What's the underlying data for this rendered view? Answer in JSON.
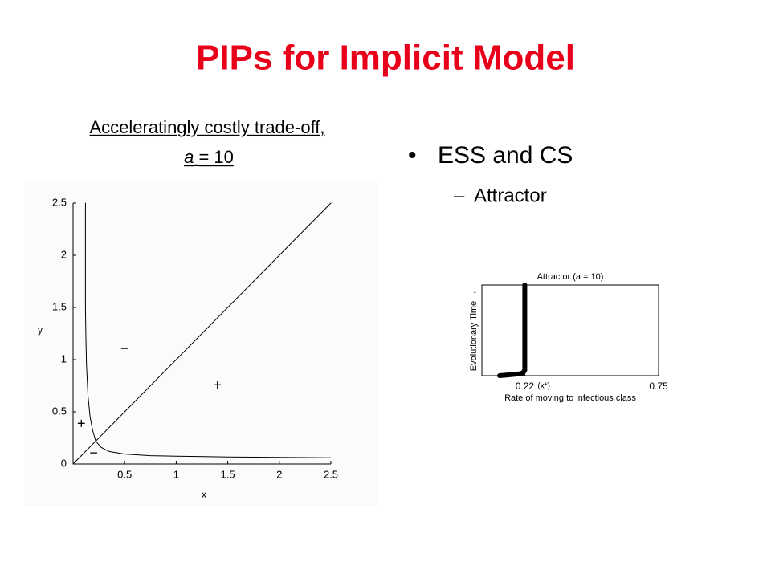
{
  "header": {
    "title": "PIPs for Implicit Model"
  },
  "caption": {
    "line1": "Acceleratingly costly trade-off,",
    "variable": "a",
    "rest": "= 10"
  },
  "bullets": [
    {
      "text": "ESS and CS",
      "sub": [
        "Attractor"
      ]
    }
  ],
  "chart_data": [
    {
      "type": "line",
      "xlabel": "x",
      "ylabel": "y",
      "xlim": [
        0,
        2.5
      ],
      "ylim": [
        0,
        2.5
      ],
      "xticks": [
        0.5,
        1,
        1.5,
        2,
        2.5
      ],
      "yticks": [
        0,
        0.5,
        1,
        1.5,
        2,
        2.5
      ],
      "series": [
        {
          "color": "#000000",
          "x": [
            0,
            2.5
          ],
          "values": [
            0,
            2.5
          ]
        },
        {
          "color": "#000000",
          "x": [
            0.12,
            0.12,
            0.125,
            0.13,
            0.145,
            0.165,
            0.19,
            0.22,
            0.27,
            0.35,
            0.5,
            0.75,
            1,
            1.5,
            2,
            2.5
          ],
          "values": [
            2.5,
            1.5,
            1.2,
            0.95,
            0.65,
            0.45,
            0.32,
            0.22,
            0.16,
            0.12,
            0.095,
            0.08,
            0.075,
            0.068,
            0.064,
            0.06
          ]
        }
      ],
      "annotations": [
        {
          "text": "−",
          "x": 0.5,
          "y": 1.1
        },
        {
          "text": "+",
          "x": 1.4,
          "y": 0.75
        },
        {
          "text": "+",
          "x": 0.08,
          "y": 0.38
        },
        {
          "text": "−",
          "x": 0.2,
          "y": 0.1
        }
      ]
    },
    {
      "type": "line",
      "title": "Attractor (a = 10)",
      "xlabel": "Rate of moving to infectious class",
      "ylabel": "Evolutionary Time →",
      "xlim": [
        0.05,
        0.75
      ],
      "ylim": [
        0,
        100
      ],
      "xticks": [
        0.22,
        0.75
      ],
      "xtick_note": "(x*)",
      "series": [
        {
          "color": "#000000",
          "x": [
            0.12,
            0.16,
            0.2,
            0.21,
            0.215,
            0.22,
            0.22,
            0.22,
            0.22,
            0.22,
            0.22,
            0.22,
            0.22,
            0.22,
            0.22
          ],
          "values": [
            0,
            1,
            2,
            3,
            4,
            6,
            15,
            25,
            35,
            45,
            55,
            65,
            75,
            85,
            100
          ]
        }
      ]
    }
  ]
}
